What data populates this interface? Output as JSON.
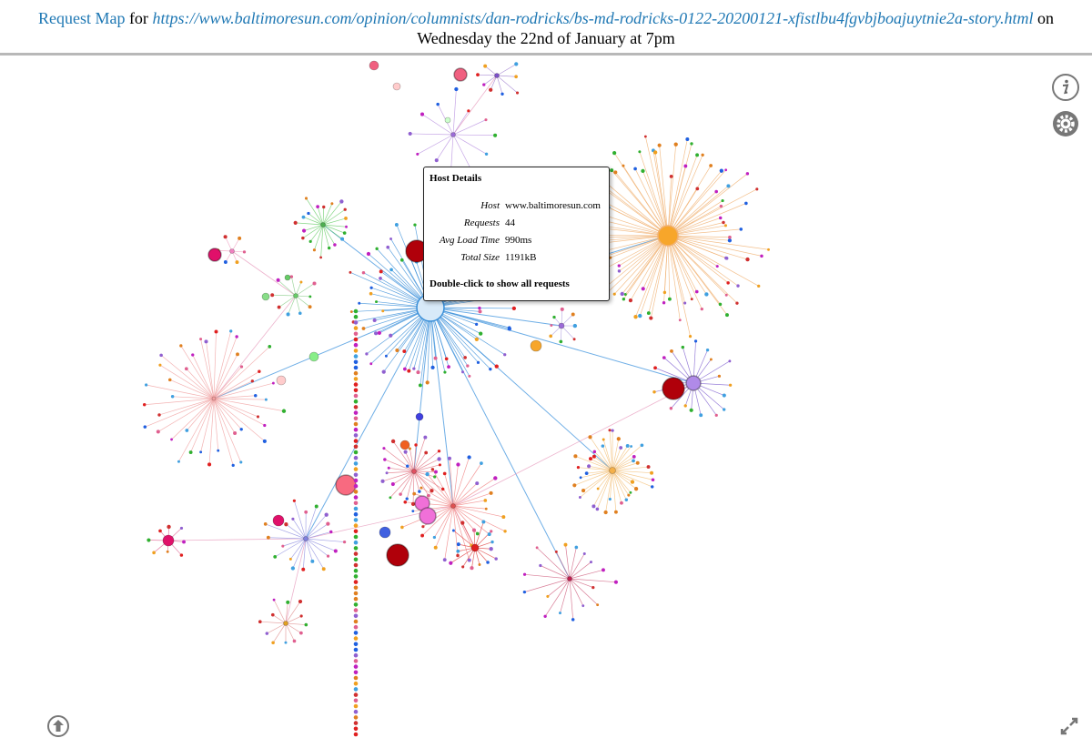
{
  "header": {
    "app_name": "Request Map",
    "for_word": "for",
    "url": "https://www.baltimoresun.com/opinion/columnists/dan-rodricks/bs-md-rodricks-0122-20200121-xfistlbu4fgvbjboajuytnie2a-story.html",
    "on_word": "on",
    "date": "Wednesday the 22nd of January at 7pm"
  },
  "tooltip": {
    "title": "Host Details",
    "rows": [
      [
        "Host",
        "www.baltimoresun.com"
      ],
      [
        "Requests",
        "44"
      ],
      [
        "Avg Load Time",
        "990ms"
      ],
      [
        "Total Size",
        "1191kB"
      ]
    ],
    "hint": "Double-click to show all requests"
  }
}
